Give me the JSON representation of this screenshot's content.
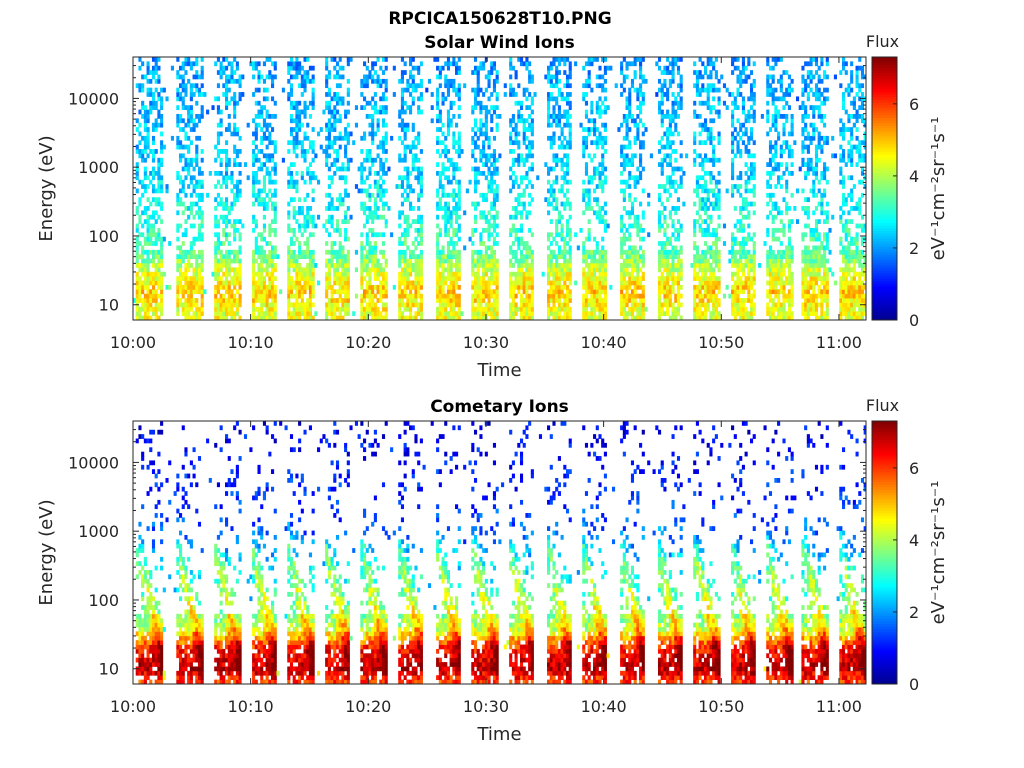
{
  "figure": {
    "title": "RPCICA150628T10.PNG",
    "colors": {
      "jet_colormap": [
        "#00008f",
        "#0000ff",
        "#0080ff",
        "#00ffff",
        "#80ff80",
        "#ffff00",
        "#ff8000",
        "#ff0000",
        "#800000"
      ]
    }
  },
  "chart_data": [
    {
      "type": "heatmap",
      "title": "Solar Wind Ions",
      "xlabel": "Time",
      "ylabel": "Energy (eV)",
      "x_ticks": [
        "10:00",
        "10:10",
        "10:20",
        "10:30",
        "10:40",
        "10:50",
        "11:00"
      ],
      "x_tick_minutes": [
        0,
        10,
        20,
        30,
        40,
        50,
        60
      ],
      "xlim_minutes": [
        0,
        62.3
      ],
      "y_scale": "log",
      "y_ticks": [
        10,
        100,
        1000,
        10000
      ],
      "y_tick_labels": [
        "10",
        "100",
        "1000",
        "10000"
      ],
      "ylim": [
        6,
        40000
      ],
      "colorbar": {
        "title": "Flux",
        "label": "eV⁻¹cm⁻²sr⁻¹s⁻¹",
        "ticks": [
          0,
          2,
          4,
          6
        ],
        "tick_labels": [
          "0",
          "2",
          "4",
          "6"
        ],
        "range": [
          0,
          7.3
        ]
      },
      "sweep_start_minutes": [
        0.2,
        3.6,
        6.8,
        9.9,
        13.0,
        16.2,
        19.2,
        22.4,
        25.6,
        28.7,
        31.8,
        35.0,
        38.0,
        41.2,
        44.4,
        47.5,
        50.6,
        53.7,
        56.8,
        59.9
      ],
      "sweep_profile": [
        {
          "energy": 40000,
          "flux": 2.0
        },
        {
          "energy": 10000,
          "flux": 2.2
        },
        {
          "energy": 1000,
          "flux": 2.4
        },
        {
          "energy": 200,
          "flux": 2.9
        },
        {
          "energy": 60,
          "flux": 3.3
        },
        {
          "energy": 30,
          "flux": 4.3
        },
        {
          "energy": 15,
          "flux": 4.9
        },
        {
          "energy": 8,
          "flux": 4.4
        }
      ]
    },
    {
      "type": "heatmap",
      "title": "Cometary Ions",
      "xlabel": "Time",
      "ylabel": "Energy (eV)",
      "x_ticks": [
        "10:00",
        "10:10",
        "10:20",
        "10:30",
        "10:40",
        "10:50",
        "11:00"
      ],
      "x_tick_minutes": [
        0,
        10,
        20,
        30,
        40,
        50,
        60
      ],
      "xlim_minutes": [
        0,
        62.3
      ],
      "y_scale": "log",
      "y_ticks": [
        10,
        100,
        1000,
        10000
      ],
      "y_tick_labels": [
        "10",
        "100",
        "1000",
        "10000"
      ],
      "ylim": [
        6,
        40000
      ],
      "colorbar": {
        "title": "Flux",
        "label": "eV⁻¹cm⁻²sr⁻¹s⁻¹",
        "ticks": [
          0,
          2,
          4,
          6
        ],
        "tick_labels": [
          "0",
          "2",
          "4",
          "6"
        ],
        "range": [
          0,
          7.3
        ]
      },
      "sweep_start_minutes": [
        0.2,
        3.6,
        6.8,
        9.9,
        13.0,
        16.2,
        19.2,
        22.4,
        25.6,
        28.7,
        31.8,
        35.0,
        38.0,
        41.2,
        44.4,
        47.5,
        50.6,
        53.7,
        56.8,
        59.9
      ],
      "sweep_profile": [
        {
          "energy": 30000,
          "flux": 0.8
        },
        {
          "energy": 1000,
          "flux": 1.5
        },
        {
          "energy": 300,
          "flux": 2.6
        },
        {
          "energy": 100,
          "flux": 3.2
        },
        {
          "energy": 40,
          "flux": 4.0
        },
        {
          "energy": 20,
          "flux": 6.2
        },
        {
          "energy": 10,
          "flux": 6.9
        },
        {
          "energy": 7,
          "flux": 6.0
        }
      ]
    }
  ]
}
